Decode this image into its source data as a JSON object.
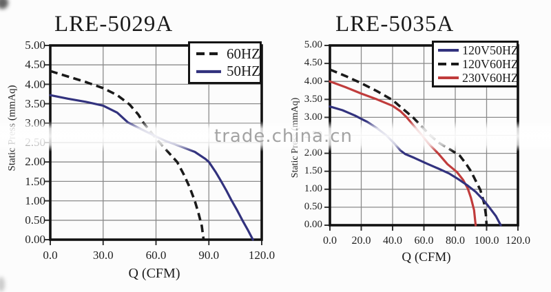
{
  "watermark": {
    "text": "trade.china.cn"
  },
  "palette": {
    "curve_blue": "#32327e",
    "curve_red": "#c03c3c",
    "curve_black": "#1a1a1a",
    "grid_gray": "#8a8a8a",
    "axis_black": "#121212",
    "watermark_gray": "#a3a3a3"
  },
  "chart_data": [
    {
      "type": "line",
      "title": "LRE-5029A",
      "xlabel": "Q (CFM)",
      "ylabel": "Static Press (mmAq)",
      "xlim": [
        0,
        120
      ],
      "ylim": [
        0,
        5
      ],
      "grid": true,
      "legend_position": "top-right",
      "x_ticks": [
        "0.0",
        "30.0",
        "60.0",
        "90.0",
        "120.0"
      ],
      "y_ticks": [
        "5.00",
        "4.50",
        "4.00",
        "3.50",
        "3.00",
        "2.50",
        "2.00",
        "1.50",
        "1.00",
        "0.50",
        "0.00"
      ],
      "series": [
        {
          "name": "60HZ",
          "color": "#1a1a1a",
          "dashed": true,
          "points": [
            [
              0,
              4.34
            ],
            [
              10,
              4.2
            ],
            [
              20,
              4.06
            ],
            [
              30,
              3.9
            ],
            [
              38,
              3.72
            ],
            [
              45,
              3.48
            ],
            [
              50,
              3.22
            ],
            [
              53,
              3.0
            ],
            [
              58,
              2.72
            ],
            [
              63,
              2.45
            ],
            [
              68,
              2.2
            ],
            [
              72,
              2.0
            ],
            [
              76,
              1.66
            ],
            [
              79,
              1.36
            ],
            [
              82,
              1.0
            ],
            [
              84,
              0.7
            ],
            [
              86,
              0.35
            ],
            [
              87,
              0.0
            ]
          ]
        },
        {
          "name": "50HZ",
          "color": "#32327e",
          "dashed": false,
          "points": [
            [
              0,
              3.72
            ],
            [
              10,
              3.63
            ],
            [
              20,
              3.55
            ],
            [
              30,
              3.45
            ],
            [
              38,
              3.27
            ],
            [
              44,
              3.02
            ],
            [
              50,
              2.88
            ],
            [
              58,
              2.7
            ],
            [
              66,
              2.53
            ],
            [
              74,
              2.4
            ],
            [
              82,
              2.26
            ],
            [
              88,
              2.08
            ],
            [
              90,
              2.0
            ],
            [
              94,
              1.73
            ],
            [
              97,
              1.5
            ],
            [
              100,
              1.26
            ],
            [
              103,
              1.0
            ],
            [
              106,
              0.76
            ],
            [
              109,
              0.5
            ],
            [
              112,
              0.26
            ],
            [
              115,
              0.0
            ]
          ]
        }
      ]
    },
    {
      "type": "line",
      "title": "LRE-5035A",
      "xlabel": "Q (CFM)",
      "ylabel": "Static Press (mmAq)",
      "xlim": [
        0,
        120
      ],
      "ylim": [
        0,
        5
      ],
      "grid": true,
      "legend_position": "top-right",
      "x_ticks": [
        "0.0",
        "20.0",
        "40.0",
        "60.0",
        "80.0",
        "100.0",
        "120.0"
      ],
      "y_ticks": [
        "5.00",
        "4.50",
        "4.00",
        "3.50",
        "3.00",
        "2.50",
        "2.00",
        "1.50",
        "1.00",
        "0.50",
        "0.00"
      ],
      "series": [
        {
          "name": "120V50HZ",
          "color": "#32327e",
          "dashed": false,
          "points": [
            [
              0,
              3.3
            ],
            [
              8,
              3.2
            ],
            [
              16,
              3.05
            ],
            [
              24,
              2.87
            ],
            [
              30,
              2.7
            ],
            [
              36,
              2.5
            ],
            [
              41,
              2.28
            ],
            [
              45,
              2.08
            ],
            [
              48,
              1.98
            ],
            [
              54,
              1.87
            ],
            [
              62,
              1.71
            ],
            [
              70,
              1.56
            ],
            [
              76,
              1.44
            ],
            [
              82,
              1.28
            ],
            [
              88,
              1.1
            ],
            [
              93,
              0.93
            ],
            [
              98,
              0.7
            ],
            [
              102,
              0.48
            ],
            [
              106,
              0.25
            ],
            [
              109,
              0.0
            ]
          ]
        },
        {
          "name": "120V60HZ",
          "color": "#1a1a1a",
          "dashed": true,
          "points": [
            [
              0,
              4.33
            ],
            [
              10,
              4.15
            ],
            [
              20,
              3.95
            ],
            [
              30,
              3.73
            ],
            [
              40,
              3.48
            ],
            [
              47,
              3.22
            ],
            [
              53,
              3.0
            ],
            [
              58,
              2.77
            ],
            [
              64,
              2.5
            ],
            [
              70,
              2.28
            ],
            [
              77,
              2.1
            ],
            [
              83,
              1.93
            ],
            [
              87,
              1.7
            ],
            [
              90,
              1.5
            ],
            [
              93,
              1.24
            ],
            [
              96,
              0.98
            ],
            [
              98.5,
              0.6
            ],
            [
              99.5,
              0.3
            ],
            [
              100,
              0.0
            ]
          ]
        },
        {
          "name": "230V60HZ",
          "color": "#c03c3c",
          "dashed": false,
          "points": [
            [
              0,
              4.0
            ],
            [
              10,
              3.84
            ],
            [
              20,
              3.66
            ],
            [
              30,
              3.5
            ],
            [
              40,
              3.32
            ],
            [
              45,
              3.17
            ],
            [
              49,
              3.0
            ],
            [
              54,
              2.74
            ],
            [
              58,
              2.54
            ],
            [
              63,
              2.27
            ],
            [
              69,
              2.0
            ],
            [
              75,
              1.7
            ],
            [
              81,
              1.48
            ],
            [
              85,
              1.26
            ],
            [
              88,
              1.02
            ],
            [
              90,
              0.76
            ],
            [
              92,
              0.42
            ],
            [
              93,
              0.0
            ]
          ]
        }
      ]
    }
  ]
}
